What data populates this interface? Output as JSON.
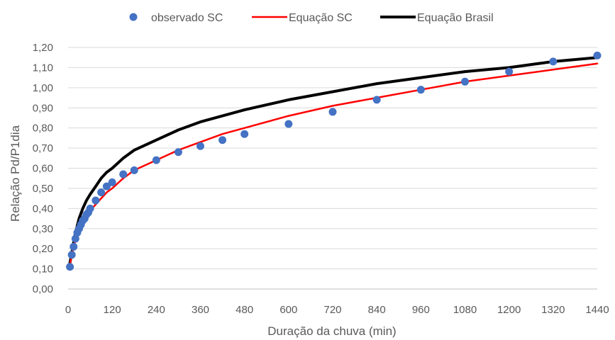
{
  "chart_data": {
    "type": "scatter",
    "xlabel": "Duração da chuva (min)",
    "ylabel": "Relação Pd/P1dia",
    "xlim": [
      0,
      1440
    ],
    "ylim": [
      0,
      1.2
    ],
    "x_ticks": [
      "0",
      "120",
      "240",
      "360",
      "480",
      "600",
      "720",
      "840",
      "960",
      "1080",
      "1200",
      "1320",
      "1440"
    ],
    "y_ticks": [
      "0,00",
      "0,10",
      "0,20",
      "0,30",
      "0,40",
      "0,50",
      "0,60",
      "0,70",
      "0,80",
      "0,90",
      "1,00",
      "1,10",
      "1,20"
    ],
    "grid": "horizontal",
    "legend_position": "top",
    "series": [
      {
        "name": "observado SC",
        "kind": "points",
        "color": "#4472C4",
        "x": [
          5,
          10,
          15,
          20,
          25,
          30,
          35,
          40,
          45,
          50,
          55,
          60,
          75,
          90,
          105,
          120,
          150,
          180,
          240,
          300,
          360,
          420,
          480,
          600,
          720,
          840,
          960,
          1080,
          1200,
          1320,
          1440
        ],
        "y": [
          0.11,
          0.17,
          0.21,
          0.25,
          0.28,
          0.3,
          0.32,
          0.34,
          0.35,
          0.37,
          0.38,
          0.4,
          0.44,
          0.48,
          0.51,
          0.53,
          0.57,
          0.59,
          0.64,
          0.68,
          0.71,
          0.74,
          0.77,
          0.82,
          0.88,
          0.94,
          0.99,
          1.03,
          1.08,
          1.13,
          1.16
        ]
      },
      {
        "name": "Equação SC",
        "kind": "line",
        "color": "#FF0000",
        "x": [
          5,
          10,
          15,
          20,
          30,
          40,
          50,
          60,
          75,
          90,
          105,
          120,
          150,
          180,
          240,
          300,
          360,
          420,
          480,
          600,
          720,
          840,
          960,
          1080,
          1200,
          1320,
          1440
        ],
        "y": [
          0.12,
          0.17,
          0.21,
          0.24,
          0.29,
          0.33,
          0.36,
          0.39,
          0.42,
          0.45,
          0.48,
          0.5,
          0.55,
          0.59,
          0.64,
          0.69,
          0.73,
          0.77,
          0.8,
          0.86,
          0.91,
          0.95,
          0.99,
          1.03,
          1.06,
          1.09,
          1.12
        ]
      },
      {
        "name": "Equação Brasil",
        "kind": "line",
        "color": "#000000",
        "x": [
          5,
          10,
          15,
          20,
          30,
          40,
          50,
          60,
          75,
          90,
          105,
          120,
          150,
          180,
          240,
          300,
          360,
          420,
          480,
          600,
          720,
          840,
          960,
          1080,
          1200,
          1320,
          1440
        ],
        "y": [
          0.13,
          0.18,
          0.23,
          0.28,
          0.35,
          0.4,
          0.44,
          0.47,
          0.51,
          0.55,
          0.58,
          0.6,
          0.65,
          0.69,
          0.74,
          0.79,
          0.83,
          0.86,
          0.89,
          0.94,
          0.98,
          1.02,
          1.05,
          1.08,
          1.1,
          1.13,
          1.15
        ]
      }
    ]
  }
}
